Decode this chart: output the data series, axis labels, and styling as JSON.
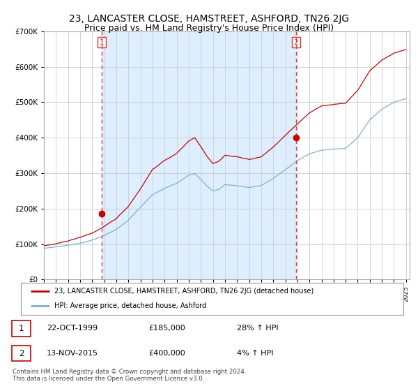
{
  "title": "23, LANCASTER CLOSE, HAMSTREET, ASHFORD, TN26 2JG",
  "subtitle": "Price paid vs. HM Land Registry's House Price Index (HPI)",
  "legend_line1": "23, LANCASTER CLOSE, HAMSTREET, ASHFORD, TN26 2JG (detached house)",
  "legend_line2": "HPI: Average price, detached house, Ashford",
  "transaction1_date": "22-OCT-1999",
  "transaction1_price": 185000,
  "transaction1_hpi": "28% ↑ HPI",
  "transaction2_date": "13-NOV-2015",
  "transaction2_price": 400000,
  "transaction2_hpi": "4% ↑ HPI",
  "vline1_x": 1999.8,
  "vline2_x": 2015.87,
  "marker1_price": 185000,
  "marker2_price": 400000,
  "ylim": [
    0,
    700000
  ],
  "yticks": [
    0,
    100000,
    200000,
    300000,
    400000,
    500000,
    600000,
    700000
  ],
  "xlim_left": 1995.0,
  "xlim_right": 2025.3,
  "background_color": "#ffffff",
  "plot_bg_color": "#ffffff",
  "shade_color": "#ddeeff",
  "grid_color": "#cccccc",
  "red_line_color": "#cc0000",
  "blue_line_color": "#7ab0d4",
  "vline_color": "#dd3333",
  "title_fontsize": 10,
  "subtitle_fontsize": 9,
  "footer_text": "Contains HM Land Registry data © Crown copyright and database right 2024.\nThis data is licensed under the Open Government Licence v3.0."
}
